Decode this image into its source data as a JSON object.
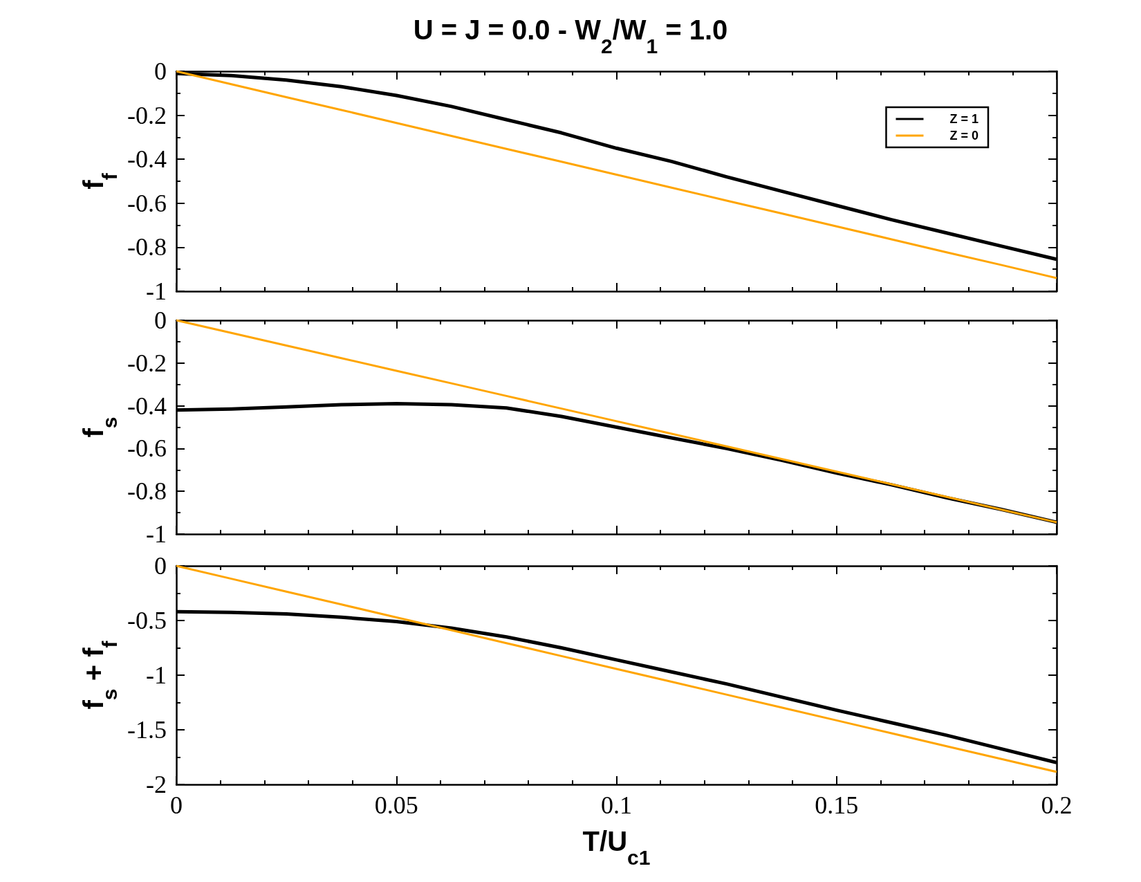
{
  "chart_data": [
    {
      "type": "line",
      "title": "U = J = 0.0 - W$_{2}$/W$_{1}$ = 1.0",
      "ylabel": "f$_{f}$",
      "x": [
        0,
        0.0125,
        0.025,
        0.0375,
        0.05,
        0.0625,
        0.075,
        0.0875,
        0.1,
        0.1125,
        0.125,
        0.1375,
        0.15,
        0.1625,
        0.175,
        0.1875,
        0.2
      ],
      "xlim": [
        0,
        0.2
      ],
      "xticks": [
        0,
        0.05,
        0.1,
        0.15,
        0.2
      ],
      "ylim": [
        -1,
        0
      ],
      "yticks": [
        -1,
        -0.8,
        -0.6,
        -0.4,
        -0.2,
        0
      ],
      "tick_labels": "y",
      "legend": "top right",
      "marker": "none",
      "series": [
        {
          "name": "Z = 1",
          "color": "#000000",
          "values": [
            -0.01,
            -0.02,
            -0.04,
            -0.07,
            -0.11,
            -0.16,
            -0.22,
            -0.28,
            -0.35,
            -0.41,
            -0.48,
            -0.545,
            -0.61,
            -0.675,
            -0.735,
            -0.795,
            -0.855
          ]
        },
        {
          "name": "Z = 0",
          "color": "#ffa500",
          "values": [
            0,
            -0.059,
            -0.118,
            -0.176,
            -0.235,
            -0.294,
            -0.353,
            -0.411,
            -0.47,
            -0.529,
            -0.588,
            -0.646,
            -0.705,
            -0.764,
            -0.823,
            -0.881,
            -0.94
          ]
        }
      ]
    },
    {
      "type": "line",
      "ylabel": "f$_{s}$",
      "x": [
        0,
        0.0125,
        0.025,
        0.0375,
        0.05,
        0.0625,
        0.075,
        0.0875,
        0.1,
        0.1125,
        0.125,
        0.1375,
        0.15,
        0.1625,
        0.175,
        0.1875,
        0.2
      ],
      "xlim": [
        0,
        0.2
      ],
      "xticks": [
        0,
        0.05,
        0.1,
        0.15,
        0.2
      ],
      "ylim": [
        -1,
        0
      ],
      "yticks": [
        -1,
        -0.8,
        -0.6,
        -0.4,
        -0.2,
        0
      ],
      "tick_labels": "y",
      "marker": "none",
      "series": [
        {
          "color": "#000000",
          "values": [
            -0.42,
            -0.415,
            -0.405,
            -0.395,
            -0.39,
            -0.395,
            -0.41,
            -0.45,
            -0.5,
            -0.55,
            -0.6,
            -0.655,
            -0.715,
            -0.77,
            -0.83,
            -0.885,
            -0.945
          ]
        },
        {
          "color": "#ffa500",
          "values": [
            0,
            -0.059,
            -0.118,
            -0.177,
            -0.236,
            -0.295,
            -0.354,
            -0.413,
            -0.472,
            -0.531,
            -0.59,
            -0.649,
            -0.708,
            -0.767,
            -0.826,
            -0.886,
            -0.945
          ]
        }
      ]
    },
    {
      "type": "line",
      "xlabel": "T/U$_{c1}$",
      "ylabel": "f$_{s}$ + f$_{f}$",
      "x": [
        0,
        0.0125,
        0.025,
        0.0375,
        0.05,
        0.0625,
        0.075,
        0.0875,
        0.1,
        0.1125,
        0.125,
        0.1375,
        0.15,
        0.1625,
        0.175,
        0.1875,
        0.2
      ],
      "xlim": [
        0,
        0.2
      ],
      "xticks": [
        0,
        0.05,
        0.1,
        0.15,
        0.2
      ],
      "ylim": [
        -2,
        0
      ],
      "yticks": [
        -2,
        -1.5,
        -1,
        -0.5,
        0
      ],
      "marker": "none",
      "series": [
        {
          "color": "#000000",
          "values": [
            -0.42,
            -0.425,
            -0.44,
            -0.47,
            -0.51,
            -0.57,
            -0.65,
            -0.75,
            -0.86,
            -0.97,
            -1.08,
            -1.2,
            -1.32,
            -1.435,
            -1.55,
            -1.675,
            -1.8
          ]
        },
        {
          "color": "#ffa500",
          "values": [
            0,
            -0.118,
            -0.236,
            -0.353,
            -0.471,
            -0.589,
            -0.707,
            -0.825,
            -0.943,
            -1.06,
            -1.178,
            -1.296,
            -1.414,
            -1.532,
            -1.65,
            -1.767,
            -1.885
          ]
        }
      ]
    }
  ]
}
